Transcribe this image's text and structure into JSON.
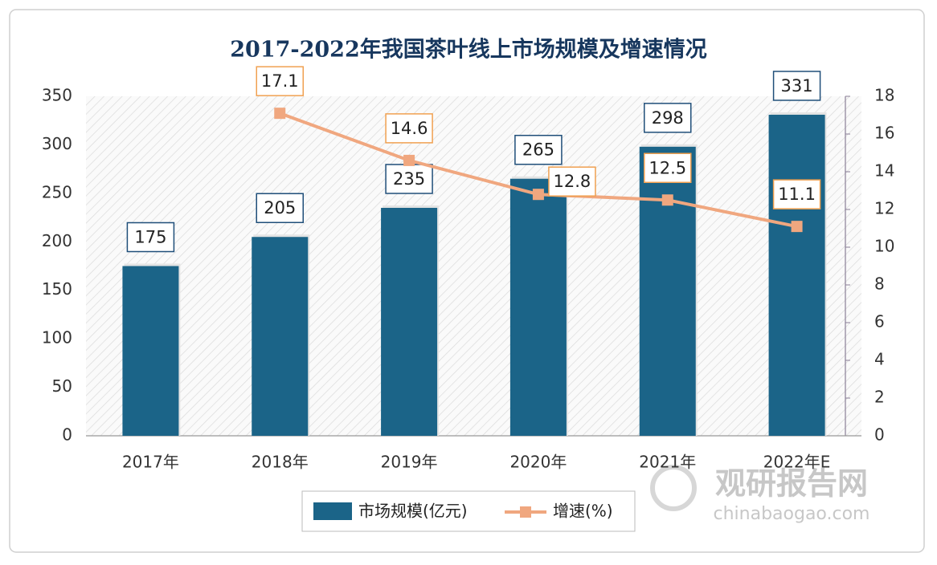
{
  "chart_data": {
    "type": "bar",
    "title": "2017-2022年我国茶叶线上市场规模及增速情况",
    "categories": [
      "2017年",
      "2018年",
      "2019年",
      "2020年",
      "2021年",
      "2022年E"
    ],
    "series": [
      {
        "name": "市场规模(亿元)",
        "type": "bar",
        "color": "#1b6488",
        "values": [
          175,
          205,
          235,
          265,
          298,
          331
        ]
      },
      {
        "name": "增速(%)",
        "type": "line",
        "axis": "y2",
        "color": "#f0a77f",
        "values": [
          null,
          17.1,
          14.6,
          12.8,
          12.5,
          11.1
        ]
      }
    ],
    "ylim": [
      0,
      350
    ],
    "yticks": [
      0,
      50,
      100,
      150,
      200,
      250,
      300,
      350
    ],
    "y2lim": [
      0,
      18
    ],
    "y2ticks": [
      0,
      2,
      4,
      6,
      8,
      10,
      12,
      14,
      16,
      18
    ],
    "grid": false,
    "legend": "bottom"
  },
  "watermark": {
    "name": "观研报告网",
    "url": "chinabaogao.com"
  }
}
